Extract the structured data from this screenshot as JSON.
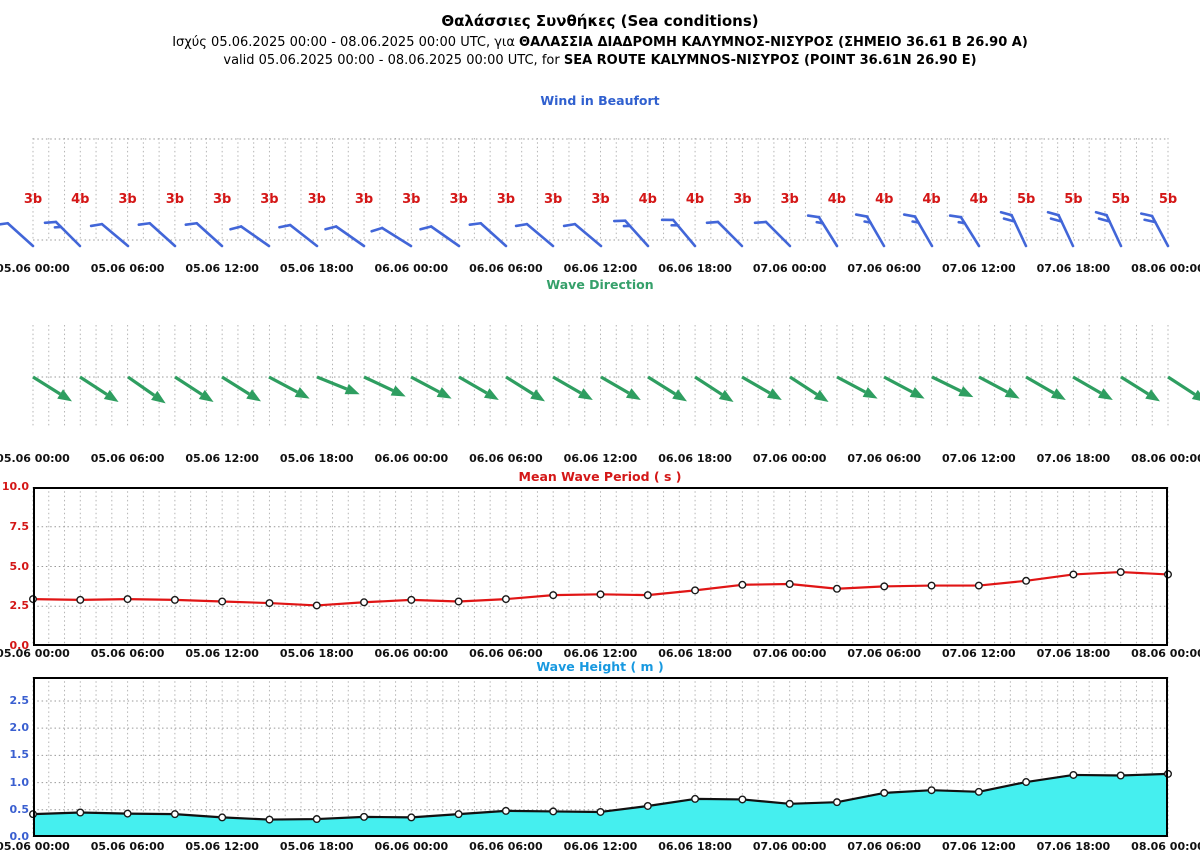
{
  "header": {
    "title": "Θαλάσσιες Συνθήκες (Sea conditions)",
    "validity_el_prefix": "Ισχύς 05.06.2025 00:00 - 08.06.2025 00:00 UTC, για ",
    "validity_el_bold": "ΘΑΛΑΣΣΙΑ ΔΙΑΔΡΟΜΗ ΚΑΛΥΜΝΟΣ-ΝΙΣΥΡΟΣ (ΣΗΜΕΙΟ 36.61 Β 26.90 Α)",
    "validity_en_prefix": "valid 05.06.2025 00:00 - 08.06.2025 00:00 UTC, for ",
    "validity_en_bold": "SEA ROUTE KALYMNOS-ΝΙΣΥΡΟΣ (POINT 36.61N 26.90 E)"
  },
  "time_axis": {
    "step_hours": 3,
    "tick_labels": [
      "05.06 00:00",
      "05.06 06:00",
      "05.06 12:00",
      "05.06 18:00",
      "06.06 00:00",
      "06.06 06:00",
      "06.06 12:00",
      "06.06 18:00",
      "07.06 00:00",
      "07.06 06:00",
      "07.06 12:00",
      "07.06 18:00",
      "08.06 00:00"
    ]
  },
  "colors": {
    "red": "#d41717",
    "line_red": "#e01515",
    "barb_blue": "#4266d8",
    "wind_title_blue": "#3060cf",
    "arrow_green": "#2e9e60",
    "dir_title_green": "#35a06a",
    "height_title_blue": "#1899e0",
    "height_axis_blue": "#3a5fd0",
    "cyan_fill": "#45efef",
    "grid_gray": "#b5b5b5",
    "grid_dark": "#999999",
    "frame_black": "#000000",
    "height_line_black": "#111111"
  },
  "chart_data": [
    {
      "type": "wind-barbs",
      "title": "Wind in Beaufort",
      "x_times": [
        "05.06 00:00",
        "05.06 03:00",
        "05.06 06:00",
        "05.06 09:00",
        "05.06 12:00",
        "05.06 15:00",
        "05.06 18:00",
        "05.06 21:00",
        "06.06 00:00",
        "06.06 03:00",
        "06.06 06:00",
        "06.06 09:00",
        "06.06 12:00",
        "06.06 15:00",
        "06.06 18:00",
        "06.06 21:00",
        "07.06 00:00",
        "07.06 03:00",
        "07.06 06:00",
        "07.06 09:00",
        "07.06 12:00",
        "07.06 15:00",
        "07.06 18:00",
        "07.06 21:00",
        "08.06 00:00"
      ],
      "beaufort": [
        3,
        4,
        3,
        3,
        3,
        3,
        3,
        3,
        3,
        3,
        3,
        3,
        3,
        4,
        4,
        3,
        3,
        4,
        4,
        4,
        4,
        5,
        5,
        5,
        5
      ],
      "labels": [
        "3b",
        "4b",
        "3b",
        "3b",
        "3b",
        "3b",
        "3b",
        "3b",
        "3b",
        "3b",
        "3b",
        "3b",
        "3b",
        "4b",
        "4b",
        "3b",
        "3b",
        "4b",
        "4b",
        "4b",
        "4b",
        "5b",
        "5b",
        "5b",
        "5b"
      ],
      "barb_angles_deg": [
        48,
        45,
        50,
        48,
        48,
        55,
        52,
        55,
        58,
        55,
        48,
        50,
        50,
        42,
        40,
        45,
        45,
        32,
        30,
        30,
        32,
        25,
        25,
        25,
        28
      ]
    },
    {
      "type": "direction-arrows",
      "title": "Wave Direction",
      "arrow_angles_down_deg": [
        32,
        33,
        35,
        33,
        32,
        28,
        22,
        25,
        28,
        30,
        32,
        30,
        30,
        32,
        33,
        30,
        33,
        28,
        28,
        26,
        28,
        30,
        30,
        32,
        33
      ]
    },
    {
      "type": "line",
      "title": "Mean Wave Period ( s )",
      "ylim": [
        0,
        10
      ],
      "yticks": [
        "10.0",
        "7.5",
        "5.0",
        "2.5",
        "0.0"
      ],
      "values": [
        2.95,
        2.9,
        2.95,
        2.9,
        2.8,
        2.7,
        2.55,
        2.75,
        2.9,
        2.8,
        2.95,
        3.2,
        3.25,
        3.2,
        3.5,
        3.85,
        3.9,
        3.6,
        3.75,
        3.8,
        3.8,
        4.1,
        4.5,
        4.65,
        4.5
      ]
    },
    {
      "type": "area",
      "title": "Wave Height ( m )",
      "ylim": [
        0,
        2.94
      ],
      "yticks": [
        "2.5",
        "2.0",
        "1.5",
        "1.0",
        "0.5",
        "0.0"
      ],
      "values": [
        0.42,
        0.45,
        0.43,
        0.42,
        0.36,
        0.32,
        0.33,
        0.37,
        0.36,
        0.42,
        0.48,
        0.47,
        0.46,
        0.57,
        0.7,
        0.69,
        0.61,
        0.64,
        0.81,
        0.86,
        0.83,
        1.01,
        1.14,
        1.13,
        1.16
      ]
    }
  ]
}
